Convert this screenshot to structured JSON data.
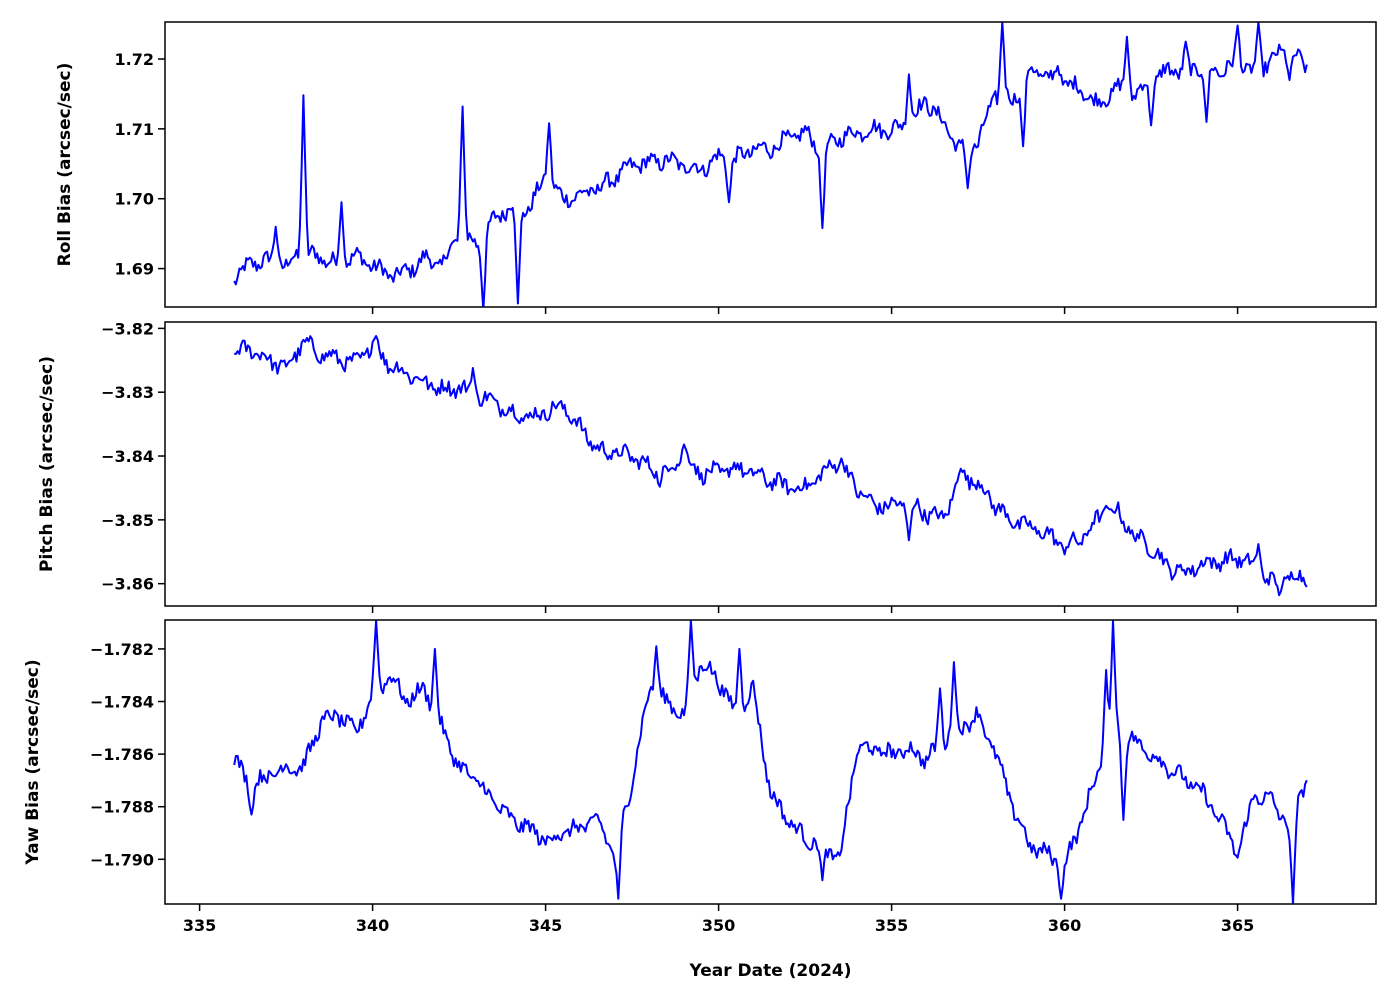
{
  "chart_data": [
    {
      "type": "line",
      "ylabel": "Roll Bias (arcsec/sec)",
      "xlim": [
        334,
        369
      ],
      "ylim": [
        1.6845,
        1.7253
      ],
      "yticks": [
        1.69,
        1.7,
        1.71,
        1.72
      ],
      "ytick_labels": [
        "1.69",
        "1.70",
        "1.71",
        "1.72"
      ],
      "grid": false,
      "color": "#0000ff",
      "x": [
        336.0,
        336.5,
        337.0,
        337.5,
        338.0,
        338.5,
        339.0,
        339.5,
        340.0,
        340.5,
        341.0,
        341.5,
        342.0,
        342.5,
        343.0,
        343.5,
        344.0,
        344.5,
        345.0,
        345.5,
        346.0,
        346.5,
        347.0,
        347.5,
        348.0,
        348.5,
        349.0,
        349.5,
        350.0,
        350.5,
        351.0,
        351.5,
        352.0,
        352.5,
        353.0,
        353.5,
        354.0,
        354.5,
        355.0,
        355.5,
        356.0,
        356.5,
        357.0,
        357.5,
        358.0,
        358.5,
        359.0,
        359.5,
        360.0,
        360.5,
        361.0,
        361.5,
        362.0,
        362.5,
        363.0,
        363.5,
        364.0,
        364.5,
        365.0,
        365.5,
        366.0,
        366.5,
        367.0
      ],
      "y": [
        1.6885,
        1.6908,
        1.6912,
        1.6905,
        1.6925,
        1.6915,
        1.6908,
        1.6918,
        1.6905,
        1.689,
        1.6895,
        1.6915,
        1.6905,
        1.695,
        1.6935,
        1.697,
        1.699,
        1.6985,
        1.703,
        1.7,
        1.7005,
        1.7015,
        1.703,
        1.7048,
        1.7052,
        1.7055,
        1.7048,
        1.7042,
        1.706,
        1.7058,
        1.707,
        1.7072,
        1.7085,
        1.7095,
        1.7068,
        1.7088,
        1.7095,
        1.71,
        1.7098,
        1.711,
        1.714,
        1.7108,
        1.707,
        1.708,
        1.715,
        1.714,
        1.7185,
        1.7175,
        1.7168,
        1.7155,
        1.7135,
        1.716,
        1.715,
        1.7168,
        1.7185,
        1.718,
        1.719,
        1.7182,
        1.7195,
        1.718,
        1.72,
        1.7215,
        1.7185
      ],
      "spikes": [
        [
          337.2,
          1.696
        ],
        [
          338.0,
          1.7148
        ],
        [
          339.1,
          1.6995
        ],
        [
          342.6,
          1.7132
        ],
        [
          343.2,
          1.684
        ],
        [
          344.2,
          1.685
        ],
        [
          345.1,
          1.7108
        ],
        [
          350.3,
          1.6995
        ],
        [
          353.0,
          1.6958
        ],
        [
          355.5,
          1.7178
        ],
        [
          357.2,
          1.7015
        ],
        [
          358.2,
          1.7253
        ],
        [
          358.8,
          1.7075
        ],
        [
          359.8,
          1.719
        ],
        [
          361.8,
          1.7232
        ],
        [
          362.5,
          1.7105
        ],
        [
          363.5,
          1.7225
        ],
        [
          364.1,
          1.711
        ],
        [
          365.0,
          1.7248
        ],
        [
          365.6,
          1.7253
        ],
        [
          366.5,
          1.717
        ]
      ]
    },
    {
      "type": "line",
      "ylabel": "Pitch Bias (arcsec/sec)",
      "xlim": [
        334,
        369
      ],
      "ylim": [
        -3.8635,
        -3.819
      ],
      "yticks": [
        -3.82,
        -3.83,
        -3.84,
        -3.85,
        -3.86
      ],
      "ytick_labels": [
        "−3.82",
        "−3.83",
        "−3.84",
        "−3.85",
        "−3.86"
      ],
      "grid": false,
      "color": "#0000ff",
      "x": [
        336.0,
        336.5,
        337.0,
        337.5,
        338.0,
        338.5,
        339.0,
        339.5,
        340.0,
        340.5,
        341.0,
        341.5,
        342.0,
        342.5,
        343.0,
        343.5,
        344.0,
        344.5,
        345.0,
        345.5,
        346.0,
        346.5,
        347.0,
        347.5,
        348.0,
        348.5,
        349.0,
        349.5,
        350.0,
        350.5,
        351.0,
        351.5,
        352.0,
        352.5,
        353.0,
        353.5,
        354.0,
        354.5,
        355.0,
        355.5,
        356.0,
        356.5,
        357.0,
        357.5,
        358.0,
        358.5,
        359.0,
        359.5,
        360.0,
        360.5,
        361.0,
        361.5,
        362.0,
        362.5,
        363.0,
        363.5,
        364.0,
        364.5,
        365.0,
        365.5,
        366.0,
        366.5,
        367.0
      ],
      "y": [
        -3.8238,
        -3.8232,
        -3.825,
        -3.8262,
        -3.8222,
        -3.824,
        -3.8248,
        -3.8255,
        -3.8225,
        -3.8258,
        -3.827,
        -3.8285,
        -3.8295,
        -3.8292,
        -3.8305,
        -3.8315,
        -3.833,
        -3.834,
        -3.833,
        -3.8322,
        -3.8355,
        -3.839,
        -3.8395,
        -3.84,
        -3.8418,
        -3.8422,
        -3.84,
        -3.8428,
        -3.8425,
        -3.8418,
        -3.8428,
        -3.8438,
        -3.8448,
        -3.845,
        -3.8428,
        -3.8405,
        -3.8452,
        -3.8478,
        -3.8478,
        -3.8472,
        -3.849,
        -3.8498,
        -3.843,
        -3.8442,
        -3.8478,
        -3.8502,
        -3.8512,
        -3.8522,
        -3.8542,
        -3.853,
        -3.8495,
        -3.8485,
        -3.8525,
        -3.8542,
        -3.8575,
        -3.8582,
        -3.8568,
        -3.8565,
        -3.856,
        -3.8572,
        -3.8598,
        -3.859,
        -3.8588
      ],
      "spikes": [
        [
          340.1,
          -3.8212
        ],
        [
          342.9,
          -3.8262
        ],
        [
          348.3,
          -3.8448
        ],
        [
          349.0,
          -3.8382
        ],
        [
          355.5,
          -3.8532
        ],
        [
          357.0,
          -3.842
        ],
        [
          361.2,
          -3.8478
        ],
        [
          365.6,
          -3.8538
        ],
        [
          366.2,
          -3.8618
        ]
      ]
    },
    {
      "type": "line",
      "ylabel": "Yaw Bias (arcsec/sec)",
      "xlabel": "Year Date (2024)",
      "xlim": [
        334,
        369
      ],
      "ylim": [
        -1.7917,
        -1.7809
      ],
      "xticks": [
        335,
        340,
        345,
        350,
        355,
        360,
        365
      ],
      "xtick_labels": [
        "335",
        "340",
        "345",
        "350",
        "355",
        "360",
        "365"
      ],
      "yticks": [
        -1.782,
        -1.784,
        -1.786,
        -1.788,
        -1.79
      ],
      "ytick_labels": [
        "−1.782",
        "−1.784",
        "−1.786",
        "−1.788",
        "−1.790"
      ],
      "grid": false,
      "color": "#0000ff",
      "x": [
        336.0,
        336.5,
        337.0,
        337.5,
        338.0,
        338.5,
        339.0,
        339.5,
        340.0,
        340.5,
        341.0,
        341.5,
        342.0,
        342.5,
        343.0,
        343.5,
        344.0,
        344.5,
        345.0,
        345.5,
        346.0,
        346.5,
        347.0,
        347.5,
        348.0,
        348.5,
        349.0,
        349.5,
        350.0,
        350.5,
        351.0,
        351.5,
        352.0,
        352.5,
        353.0,
        353.5,
        354.0,
        354.5,
        355.0,
        355.5,
        356.0,
        356.5,
        357.0,
        357.5,
        358.0,
        358.5,
        359.0,
        359.5,
        360.0,
        360.5,
        361.0,
        361.5,
        362.0,
        362.5,
        363.0,
        363.5,
        364.0,
        364.5,
        365.0,
        365.5,
        366.0,
        366.5,
        367.0
      ],
      "y": [
        -1.7862,
        -1.7872,
        -1.7868,
        -1.7865,
        -1.7865,
        -1.7848,
        -1.7845,
        -1.7852,
        -1.7838,
        -1.783,
        -1.784,
        -1.7835,
        -1.785,
        -1.7865,
        -1.787,
        -1.7878,
        -1.7885,
        -1.7888,
        -1.7893,
        -1.789,
        -1.7888,
        -1.7885,
        -1.7898,
        -1.787,
        -1.7835,
        -1.784,
        -1.7845,
        -1.7825,
        -1.7832,
        -1.7845,
        -1.7835,
        -1.7875,
        -1.7885,
        -1.7892,
        -1.7895,
        -1.79,
        -1.7858,
        -1.7858,
        -1.786,
        -1.7858,
        -1.7862,
        -1.7855,
        -1.785,
        -1.7845,
        -1.786,
        -1.788,
        -1.7895,
        -1.7898,
        -1.7902,
        -1.7885,
        -1.7865,
        -1.785,
        -1.7855,
        -1.786,
        -1.7865,
        -1.787,
        -1.7875,
        -1.7885,
        -1.7898,
        -1.7875,
        -1.7878,
        -1.7888,
        -1.7868
      ],
      "spikes": [
        [
          336.5,
          -1.7883
        ],
        [
          340.1,
          -1.7809
        ],
        [
          341.8,
          -1.782
        ],
        [
          347.1,
          -1.7915
        ],
        [
          348.2,
          -1.7819
        ],
        [
          349.2,
          -1.7809
        ],
        [
          350.6,
          -1.782
        ],
        [
          353.0,
          -1.7908
        ],
        [
          356.4,
          -1.7835
        ],
        [
          356.8,
          -1.7825
        ],
        [
          359.9,
          -1.7915
        ],
        [
          361.2,
          -1.7828
        ],
        [
          361.4,
          -1.7809
        ],
        [
          361.7,
          -1.7885
        ],
        [
          366.6,
          -1.7917
        ]
      ]
    }
  ]
}
